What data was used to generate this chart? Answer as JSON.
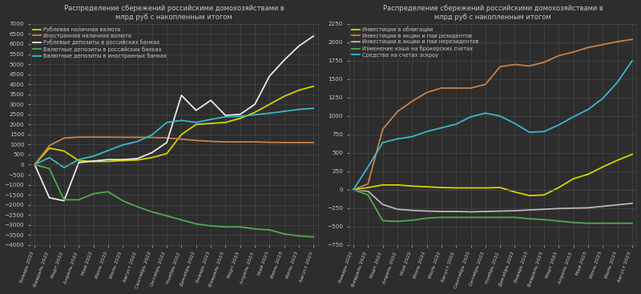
{
  "title1": "Распределение сбережений российскими домохозяйствами в\nмлрд руб с накопленным итогом",
  "title2": "Распределение сбережений российскими домохозяйствами в\nмлрд руб с накопленным итогом",
  "bg_color": "#2d2d2d",
  "grid_color": "#484848",
  "text_color": "#c8c8c8",
  "months": [
    "Январь\n2022",
    "Февраль\n2022",
    "Март\n2022",
    "Апрель\n2022",
    "Май\n2022",
    "Июнь\n2022",
    "Июль\n2022",
    "Август\n2022",
    "Сентябрь\n2022",
    "Октябрь\n2022",
    "Ноябрь\n2022",
    "Декабрь\n2022",
    "Январь\n2023",
    "Февраль\n2023",
    "Март\n2023",
    "Апрель\n2023",
    "Май\n2023",
    "Июнь\n2023",
    "Июль\n2023",
    "Август\n2023"
  ],
  "months_plain": [
    "Январь 2022",
    "Февраль 2022",
    "Март 2022",
    "Апрель 2022",
    "Май 2022",
    "Июнь 2022",
    "Июль 2022",
    "Август 2022",
    "Сентябрь 2022",
    "Октябрь 2022",
    "Ноябрь 2022",
    "Декабрь 2022",
    "Январь 2023",
    "Февраль 2023",
    "Март 2023",
    "Апрель 2023",
    "Май 2023",
    "Июнь 2023",
    "Июль 2023",
    "Август 2023"
  ],
  "chart1": {
    "series": [
      {
        "name": "Рублевая наличная валюта",
        "color": "#d4d400",
        "data": [
          0,
          820,
          680,
          200,
          150,
          160,
          200,
          230,
          350,
          550,
          1500,
          2000,
          2050,
          2100,
          2300,
          2600,
          3000,
          3400,
          3700,
          3900
        ]
      },
      {
        "name": "Иностранная наличная валюта",
        "color": "#c8824a",
        "data": [
          0,
          950,
          1320,
          1370,
          1370,
          1370,
          1360,
          1360,
          1350,
          1330,
          1270,
          1200,
          1160,
          1130,
          1130,
          1130,
          1110,
          1100,
          1100,
          1100
        ]
      },
      {
        "name": "Рублевые депозиты в российских банках",
        "color": "#e8e8e8",
        "data": [
          0,
          -1650,
          -1800,
          100,
          180,
          250,
          250,
          300,
          600,
          1100,
          3450,
          2700,
          3200,
          2450,
          2500,
          3000,
          4400,
          5200,
          5900,
          6400
        ]
      },
      {
        "name": "Валютные депозиты в российских банках",
        "color": "#50aa50",
        "data": [
          0,
          -200,
          -1750,
          -1750,
          -1450,
          -1350,
          -1800,
          -2100,
          -2350,
          -2550,
          -2750,
          -2950,
          -3050,
          -3100,
          -3100,
          -3200,
          -3250,
          -3450,
          -3550,
          -3600
        ]
      },
      {
        "name": "Валютные депозиты в иностранных банках",
        "color": "#3ab8cc",
        "data": [
          0,
          350,
          -150,
          250,
          420,
          700,
          980,
          1150,
          1480,
          2100,
          2200,
          2100,
          2250,
          2380,
          2400,
          2480,
          2560,
          2650,
          2750,
          2800
        ]
      }
    ],
    "ylim": [
      -4000,
      7000
    ],
    "yticks": [
      -4000,
      -3500,
      -3000,
      -2500,
      -2000,
      -1500,
      -1000,
      -500,
      0,
      500,
      1000,
      1500,
      2000,
      2500,
      3000,
      3500,
      4000,
      4500,
      5000,
      5500,
      6000,
      6500,
      7000
    ]
  },
  "chart2": {
    "series": [
      {
        "name": "Инвестиции в облигации",
        "color": "#d4d400",
        "data": [
          0,
          30,
          65,
          65,
          50,
          40,
          30,
          25,
          25,
          25,
          30,
          -30,
          -80,
          -70,
          30,
          150,
          210,
          310,
          400,
          480
        ]
      },
      {
        "name": "Инвестиции в акции и паи резидентов",
        "color": "#c8824a",
        "data": [
          0,
          80,
          820,
          1060,
          1200,
          1320,
          1380,
          1380,
          1380,
          1430,
          1670,
          1700,
          1680,
          1730,
          1820,
          1870,
          1930,
          1970,
          2010,
          2040
        ]
      },
      {
        "name": "Инвестиции в акции и паи нерезидентов",
        "color": "#b8b8b8",
        "data": [
          0,
          -20,
          -200,
          -265,
          -280,
          -290,
          -295,
          -295,
          -300,
          -295,
          -290,
          -285,
          -275,
          -265,
          -255,
          -250,
          -245,
          -225,
          -205,
          -185
        ]
      },
      {
        "name": "Изменение кэша на брокерских счетах",
        "color": "#50aa50",
        "data": [
          0,
          -70,
          -420,
          -430,
          -415,
          -385,
          -375,
          -375,
          -375,
          -375,
          -375,
          -375,
          -395,
          -405,
          -425,
          -445,
          -455,
          -455,
          -455,
          -455
        ]
      },
      {
        "name": "Средства на счетах эскроу",
        "color": "#3ab8cc",
        "data": [
          0,
          310,
          640,
          690,
          720,
          790,
          840,
          890,
          990,
          1040,
          1000,
          900,
          780,
          790,
          880,
          990,
          1090,
          1240,
          1460,
          1750
        ]
      }
    ],
    "ylim": [
      -750,
      2250
    ],
    "yticks": [
      -750,
      -500,
      -250,
      0,
      250,
      500,
      750,
      1000,
      1250,
      1500,
      1750,
      2000,
      2250
    ]
  }
}
